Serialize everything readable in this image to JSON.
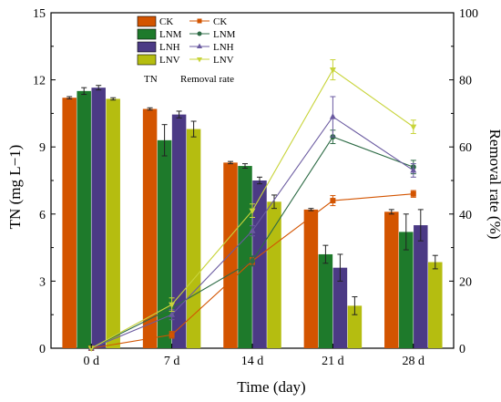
{
  "chart_data": {
    "type": "bar",
    "xlabel": "Time (day)",
    "ylabel_left": "TN (mg L−1)",
    "ylabel_right": "Removal rate (%)",
    "categories": [
      "0 d",
      "7 d",
      "14 d",
      "21 d",
      "28 d"
    ],
    "left_axis": {
      "ylim": [
        0,
        15
      ],
      "ticks": [
        "0",
        "3",
        "6",
        "9",
        "12",
        "15"
      ]
    },
    "right_axis": {
      "ylim": [
        0,
        100
      ],
      "ticks": [
        "0",
        "20",
        "40",
        "60",
        "80",
        "100"
      ]
    },
    "bar_series": [
      {
        "name": "CK",
        "color": "#d35400",
        "values": [
          11.2,
          10.7,
          8.3,
          6.2,
          6.1
        ],
        "errors": [
          0.05,
          0.05,
          0.05,
          0.05,
          0.1
        ]
      },
      {
        "name": "LNM",
        "color": "#1e7a2b",
        "values": [
          11.5,
          9.3,
          8.15,
          4.2,
          5.2
        ],
        "errors": [
          0.15,
          0.7,
          0.1,
          0.4,
          0.8
        ]
      },
      {
        "name": "LNH",
        "color": "#4b3a85",
        "values": [
          11.65,
          10.45,
          7.5,
          3.6,
          5.5
        ],
        "errors": [
          0.1,
          0.15,
          0.15,
          0.6,
          0.7
        ]
      },
      {
        "name": "LNV",
        "color": "#b5bd10",
        "values": [
          11.15,
          9.8,
          6.55,
          1.9,
          3.85
        ],
        "errors": [
          0.05,
          0.35,
          0.3,
          0.4,
          0.3
        ]
      }
    ],
    "line_series": [
      {
        "name": "CK",
        "color": "#d35400",
        "marker": "square",
        "values": [
          0,
          4,
          26,
          44,
          46
        ],
        "errors": [
          0,
          1,
          1,
          1.5,
          1
        ]
      },
      {
        "name": "LNM",
        "color": "#2d6b45",
        "marker": "circle",
        "values": [
          0,
          12,
          26,
          63,
          54
        ],
        "errors": [
          0,
          2,
          1.5,
          2,
          2
        ]
      },
      {
        "name": "LNH",
        "color": "#6a5aa0",
        "marker": "triangle-up",
        "values": [
          0,
          10,
          35,
          69,
          53
        ],
        "errors": [
          0,
          1.5,
          1.5,
          6,
          2
        ]
      },
      {
        "name": "LNV",
        "color": "#c8d43a",
        "marker": "triangle-down",
        "values": [
          0,
          13,
          41,
          83,
          66
        ],
        "errors": [
          0,
          2,
          2,
          3,
          2
        ]
      }
    ],
    "legend": {
      "placement": "top-left",
      "bar_title": "TN",
      "line_title": "Removal rate"
    },
    "grid": false
  }
}
